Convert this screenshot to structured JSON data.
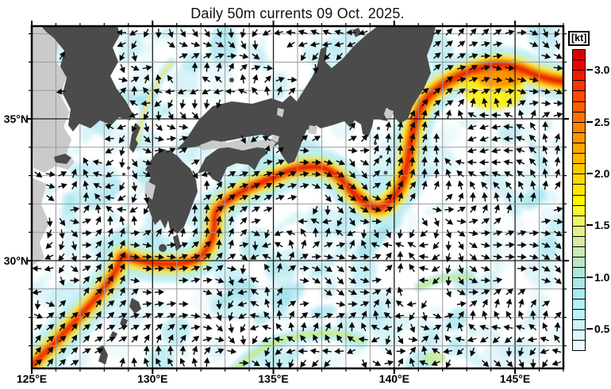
{
  "title": "Daily 50m currents 09 Oct. 2025.",
  "colorbar": {
    "unit_label": "[kt]",
    "range": [
      0.3,
      3.2
    ],
    "ticks": [
      {
        "label": "3.0",
        "value": 3.0
      },
      {
        "label": "2.5",
        "value": 2.5
      },
      {
        "label": "2.0",
        "value": 2.0
      },
      {
        "label": "1.5",
        "value": 1.5
      },
      {
        "label": "1.0",
        "value": 1.0
      },
      {
        "label": "0.5",
        "value": 0.5
      }
    ],
    "segment_colors": [
      "#da0000",
      "#e80400",
      "#f41a00",
      "#fd3300",
      "#ff4a00",
      "#ff5f00",
      "#ff7200",
      "#ff8400",
      "#ff9500",
      "#ffa600",
      "#ffb700",
      "#ffc800",
      "#ffd800",
      "#ffe700",
      "#fff500",
      "#f9f733",
      "#f0f465",
      "#e4f08b",
      "#d6eca2",
      "#c7e9b4",
      "#b9e7c6",
      "#aee7d8",
      "#a9e8e6",
      "#a9eaf0",
      "#b2edf5",
      "#bff0f8",
      "#cdf3fa",
      "#dcf6fc",
      "#ebfafd"
    ]
  },
  "axes": {
    "lon_labels": [
      {
        "label": "125°E",
        "lon": 125
      },
      {
        "label": "130°E",
        "lon": 130
      },
      {
        "label": "135°E",
        "lon": 135
      },
      {
        "label": "140°E",
        "lon": 140
      },
      {
        "label": "145°E",
        "lon": 145
      }
    ],
    "lat_labels": [
      {
        "label": "35°N",
        "lat": 35
      },
      {
        "label": "30°N",
        "lat": 30
      }
    ]
  },
  "map": {
    "land_color": "#4b4b4b",
    "shallow_color": "#cacaca",
    "ocean_color": "#ffffff",
    "grid_minor_color": "#9a9a9a",
    "grid_major_color": "#1c1c1c",
    "frame_color": "#000000",
    "arrow_color": "#0a0a0a",
    "current_core_color": "#e81800",
    "current_strong_color": "#ff8c00",
    "current_medium_color": "#ffec00",
    "current_weak_color": "#b7ecf4",
    "current_eddy_green": "#c6eb90"
  }
}
